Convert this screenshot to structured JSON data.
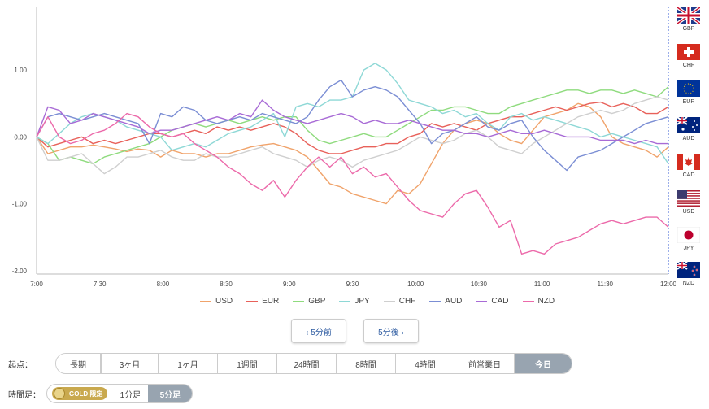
{
  "chart_data": {
    "type": "line",
    "y_tick_labels": [
      "1.00",
      "0.00",
      "-1.00",
      "-2.00"
    ],
    "y_ticks": [
      1,
      0,
      -1,
      -2
    ],
    "ylim": [
      -2.05,
      1.95
    ],
    "x_tick_labels": [
      "7:00",
      "7:30",
      "8:00",
      "8:30",
      "9:00",
      "9:30",
      "10:00",
      "10:30",
      "11:00",
      "11:30",
      "12:00"
    ],
    "xlim": [
      0,
      300
    ],
    "series": [
      {
        "name": "USD",
        "color": "#f0a36b",
        "values": [
          0,
          -0.25,
          -0.2,
          -0.15,
          -0.15,
          -0.12,
          -0.15,
          -0.18,
          -0.22,
          -0.18,
          -0.2,
          -0.3,
          -0.2,
          -0.25,
          -0.25,
          -0.3,
          -0.25,
          -0.25,
          -0.2,
          -0.15,
          -0.12,
          -0.1,
          -0.15,
          -0.2,
          -0.3,
          -0.5,
          -0.7,
          -0.75,
          -0.85,
          -0.9,
          -0.95,
          -1.0,
          -0.8,
          -0.85,
          -0.7,
          -0.4,
          -0.1,
          0.1,
          0.2,
          0.25,
          0.2,
          0.05,
          -0.05,
          -0.1,
          0.1,
          0.3,
          0.35,
          0.4,
          0.5,
          0.45,
          0.3,
          0.0,
          -0.1,
          -0.15,
          -0.2,
          -0.3,
          -0.15
        ]
      },
      {
        "name": "EUR",
        "color": "#e8615a",
        "values": [
          0,
          -0.15,
          -0.1,
          -0.05,
          0.0,
          -0.1,
          -0.05,
          -0.1,
          -0.05,
          0.0,
          0.05,
          0.05,
          0.0,
          0.05,
          0.1,
          0.05,
          0.15,
          0.1,
          0.15,
          0.1,
          0.15,
          0.2,
          0.15,
          0.05,
          -0.1,
          -0.2,
          -0.25,
          -0.25,
          -0.2,
          -0.15,
          -0.15,
          -0.1,
          -0.1,
          0.0,
          0.05,
          0.2,
          0.15,
          0.2,
          0.15,
          0.1,
          0.2,
          0.25,
          0.3,
          0.3,
          0.35,
          0.4,
          0.45,
          0.4,
          0.45,
          0.5,
          0.52,
          0.45,
          0.5,
          0.45,
          0.35,
          0.35,
          0.45
        ]
      },
      {
        "name": "GBP",
        "color": "#8fdb7e",
        "values": [
          0,
          -0.1,
          -0.35,
          -0.3,
          -0.35,
          -0.4,
          -0.3,
          -0.25,
          -0.2,
          -0.15,
          -0.1,
          0.0,
          0.1,
          0.15,
          0.2,
          0.15,
          0.2,
          0.25,
          0.2,
          0.25,
          0.3,
          0.25,
          0.3,
          0.3,
          0.1,
          -0.05,
          -0.1,
          -0.05,
          0.0,
          0.05,
          0.0,
          0.0,
          0.1,
          0.2,
          0.3,
          0.4,
          0.4,
          0.45,
          0.45,
          0.4,
          0.35,
          0.35,
          0.45,
          0.5,
          0.55,
          0.6,
          0.65,
          0.7,
          0.7,
          0.65,
          0.7,
          0.7,
          0.65,
          0.7,
          0.65,
          0.6,
          0.75
        ]
      },
      {
        "name": "JPY",
        "color": "#8ed8d6",
        "values": [
          0,
          -0.1,
          0.05,
          0.2,
          0.3,
          0.35,
          0.3,
          0.25,
          0.15,
          0.1,
          0.05,
          0.0,
          -0.2,
          -0.15,
          -0.1,
          -0.15,
          -0.05,
          0.05,
          0.1,
          0.15,
          0.25,
          0.35,
          0.0,
          0.45,
          0.5,
          0.45,
          0.55,
          0.55,
          0.6,
          1.0,
          1.1,
          1.0,
          0.8,
          0.55,
          0.5,
          0.45,
          0.35,
          0.4,
          0.3,
          0.35,
          0.2,
          0.1,
          0.3,
          0.35,
          0.25,
          0.3,
          0.25,
          0.2,
          0.15,
          0.1,
          0.0,
          0.05,
          0.0,
          -0.05,
          -0.1,
          -0.15,
          -0.4
        ]
      },
      {
        "name": "CHF",
        "color": "#cfcfcf",
        "values": [
          0,
          -0.35,
          -0.35,
          -0.3,
          -0.25,
          -0.4,
          -0.55,
          -0.45,
          -0.3,
          -0.3,
          -0.25,
          -0.2,
          -0.3,
          -0.35,
          -0.35,
          -0.25,
          -0.3,
          -0.3,
          -0.25,
          -0.2,
          -0.15,
          -0.25,
          -0.3,
          -0.35,
          -0.45,
          -0.35,
          -0.3,
          -0.35,
          -0.45,
          -0.35,
          -0.3,
          -0.25,
          -0.2,
          -0.1,
          0.0,
          -0.05,
          -0.1,
          -0.05,
          0.05,
          0.1,
          0.0,
          -0.15,
          -0.2,
          -0.25,
          -0.1,
          0.0,
          0.1,
          0.2,
          0.3,
          0.35,
          0.4,
          0.35,
          0.4,
          0.5,
          0.55,
          0.6,
          0.55
        ]
      },
      {
        "name": "AUD",
        "color": "#7b8ed4",
        "values": [
          0,
          0.3,
          0.35,
          0.3,
          0.25,
          0.3,
          0.35,
          0.3,
          0.25,
          0.2,
          -0.1,
          0.35,
          0.3,
          0.45,
          0.4,
          0.25,
          0.2,
          0.25,
          0.3,
          0.25,
          0.35,
          0.3,
          0.25,
          0.2,
          0.3,
          0.55,
          0.75,
          0.85,
          0.6,
          0.7,
          0.75,
          0.7,
          0.6,
          0.4,
          0.2,
          -0.1,
          0.05,
          0.1,
          0.2,
          0.3,
          0.15,
          0.1,
          0.2,
          0.25,
          0.0,
          -0.2,
          -0.35,
          -0.5,
          -0.3,
          -0.25,
          -0.2,
          -0.1,
          0.0,
          0.1,
          0.2,
          0.25,
          0.3
        ]
      },
      {
        "name": "CAD",
        "color": "#a86bd6",
        "values": [
          0,
          0.45,
          0.4,
          0.2,
          0.25,
          0.35,
          0.3,
          0.25,
          0.2,
          0.15,
          0.05,
          0.1,
          0.1,
          0.15,
          0.2,
          0.25,
          0.3,
          0.25,
          0.35,
          0.3,
          0.55,
          0.4,
          0.3,
          0.25,
          0.2,
          0.25,
          0.3,
          0.35,
          0.3,
          0.2,
          0.25,
          0.2,
          0.2,
          0.25,
          0.2,
          0.15,
          0.1,
          0.1,
          0.05,
          0.05,
          0.0,
          0.05,
          0.1,
          0.05,
          0.05,
          0.1,
          0.05,
          0.0,
          0.0,
          0.0,
          -0.05,
          -0.05,
          -0.05,
          -0.1,
          -0.05,
          -0.1,
          -0.1
        ]
      },
      {
        "name": "NZD",
        "color": "#ec6aaa",
        "values": [
          0,
          0.3,
          0.0,
          -0.1,
          -0.05,
          0.05,
          0.1,
          0.2,
          0.35,
          0.3,
          0.15,
          0.05,
          0.0,
          0.05,
          -0.1,
          -0.2,
          -0.3,
          -0.45,
          -0.55,
          -0.7,
          -0.8,
          -0.65,
          -0.9,
          -0.65,
          -0.45,
          -0.3,
          -0.45,
          -0.3,
          -0.55,
          -0.45,
          -0.6,
          -0.55,
          -0.75,
          -0.95,
          -1.1,
          -1.15,
          -1.2,
          -1.0,
          -0.85,
          -0.8,
          -1.05,
          -1.35,
          -1.25,
          -1.75,
          -1.7,
          -1.75,
          -1.6,
          -1.55,
          -1.5,
          -1.4,
          -1.3,
          -1.25,
          -1.3,
          -1.25,
          -1.2,
          -1.2,
          -1.35
        ]
      }
    ],
    "legend_position": "bottom",
    "grid": false
  },
  "flags": [
    {
      "code": "GBP",
      "icon": "uk-flag-icon"
    },
    {
      "code": "CHF",
      "icon": "switzerland-flag-icon"
    },
    {
      "code": "EUR",
      "icon": "eu-flag-icon"
    },
    {
      "code": "AUD",
      "icon": "australia-flag-icon"
    },
    {
      "code": "CAD",
      "icon": "canada-flag-icon"
    },
    {
      "code": "USD",
      "icon": "usa-flag-icon"
    },
    {
      "code": "JPY",
      "icon": "japan-flag-icon"
    },
    {
      "code": "NZD",
      "icon": "new-zealand-flag-icon"
    }
  ],
  "nav": {
    "prev": "‹ 5分前",
    "next": "5分後 ›"
  },
  "start_point": {
    "label": "起点：",
    "options": [
      "長期",
      "3ヶ月",
      "1ヶ月",
      "1週間",
      "24時間",
      "8時間",
      "4時間",
      "前営業日",
      "今日"
    ],
    "selected": "今日"
  },
  "timeframe": {
    "label": "時間足：",
    "gold_label": "GOLD 限定",
    "options": [
      "1分足",
      "5分足"
    ],
    "selected": "5分足"
  }
}
